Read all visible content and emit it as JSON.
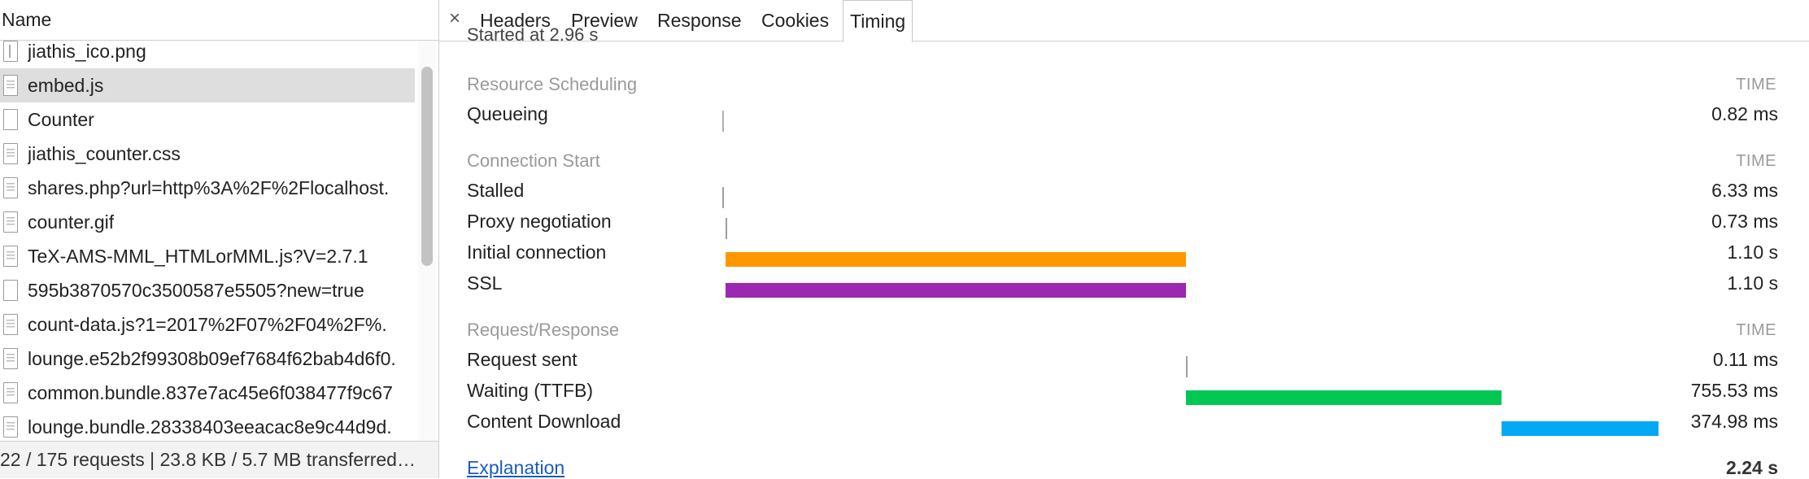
{
  "left_pane": {
    "column_header": "Name",
    "requests": [
      {
        "name": "jiathis_ico.png",
        "icon": "image-file-icon"
      },
      {
        "name": "embed.js",
        "icon": "document-file-icon",
        "selected": true
      },
      {
        "name": "Counter",
        "icon": "blank-file-icon"
      },
      {
        "name": "jiathis_counter.css",
        "icon": "document-file-icon"
      },
      {
        "name": "shares.php?url=http%3A%2F%2Flocalhost.",
        "icon": "document-file-icon"
      },
      {
        "name": "counter.gif",
        "icon": "document-file-icon"
      },
      {
        "name": "TeX-AMS-MML_HTMLorMML.js?V=2.7.1",
        "icon": "document-file-icon"
      },
      {
        "name": "595b3870570c3500587e5505?new=true",
        "icon": "blank-file-icon"
      },
      {
        "name": "count-data.js?1=2017%2F07%2F04%2F%.",
        "icon": "document-file-icon"
      },
      {
        "name": "lounge.e52b2f99308b09ef7684f62bab4d6f0.",
        "icon": "document-file-icon"
      },
      {
        "name": "common.bundle.837e7ac45e6f038477f9c67",
        "icon": "document-file-icon"
      },
      {
        "name": "lounge.bundle.28338403eeacac8e9c44d9d.",
        "icon": "document-file-icon"
      }
    ],
    "status_text": "22 / 175 requests | 23.8 KB / 5.7 MB transferred…"
  },
  "tabs": {
    "close_label": "×",
    "items": [
      "Headers",
      "Preview",
      "Response",
      "Cookies",
      "Timing"
    ],
    "active": "Timing"
  },
  "timing": {
    "started_text": "Started at 2.96 s",
    "time_header": "TIME",
    "sections": [
      {
        "title": "Resource Scheduling",
        "rows": [
          {
            "label": "Queueing",
            "value": "0.82 ms",
            "start_ms": 0,
            "duration_ms": 0.82,
            "color": "#b0b0b0"
          }
        ]
      },
      {
        "title": "Connection Start",
        "rows": [
          {
            "label": "Stalled",
            "value": "6.33 ms",
            "start_ms": 0.82,
            "duration_ms": 6.33,
            "color": "#9e9e9e"
          },
          {
            "label": "Proxy negotiation",
            "value": "0.73 ms",
            "start_ms": 7.15,
            "duration_ms": 0.73,
            "color": "#9e9e9e"
          },
          {
            "label": "Initial connection",
            "value": "1.10 s",
            "start_ms": 7.88,
            "duration_ms": 1100,
            "color": "#ff9800"
          },
          {
            "label": "SSL",
            "value": "1.10 s",
            "start_ms": 7.88,
            "duration_ms": 1100,
            "color": "#9c27b0"
          }
        ]
      },
      {
        "title": "Request/Response",
        "rows": [
          {
            "label": "Request sent",
            "value": "0.11 ms",
            "start_ms": 1107.88,
            "duration_ms": 0.11,
            "color": "#9e9e9e"
          },
          {
            "label": "Waiting (TTFB)",
            "value": "755.53 ms",
            "start_ms": 1108,
            "duration_ms": 755.53,
            "color": "#00c853"
          },
          {
            "label": "Content Download",
            "value": "374.98 ms",
            "start_ms": 1863.53,
            "duration_ms": 374.98,
            "color": "#03a9f4"
          }
        ]
      }
    ],
    "total_ms": 2240,
    "explanation_label": "Explanation",
    "total_value": "2.24 s"
  }
}
